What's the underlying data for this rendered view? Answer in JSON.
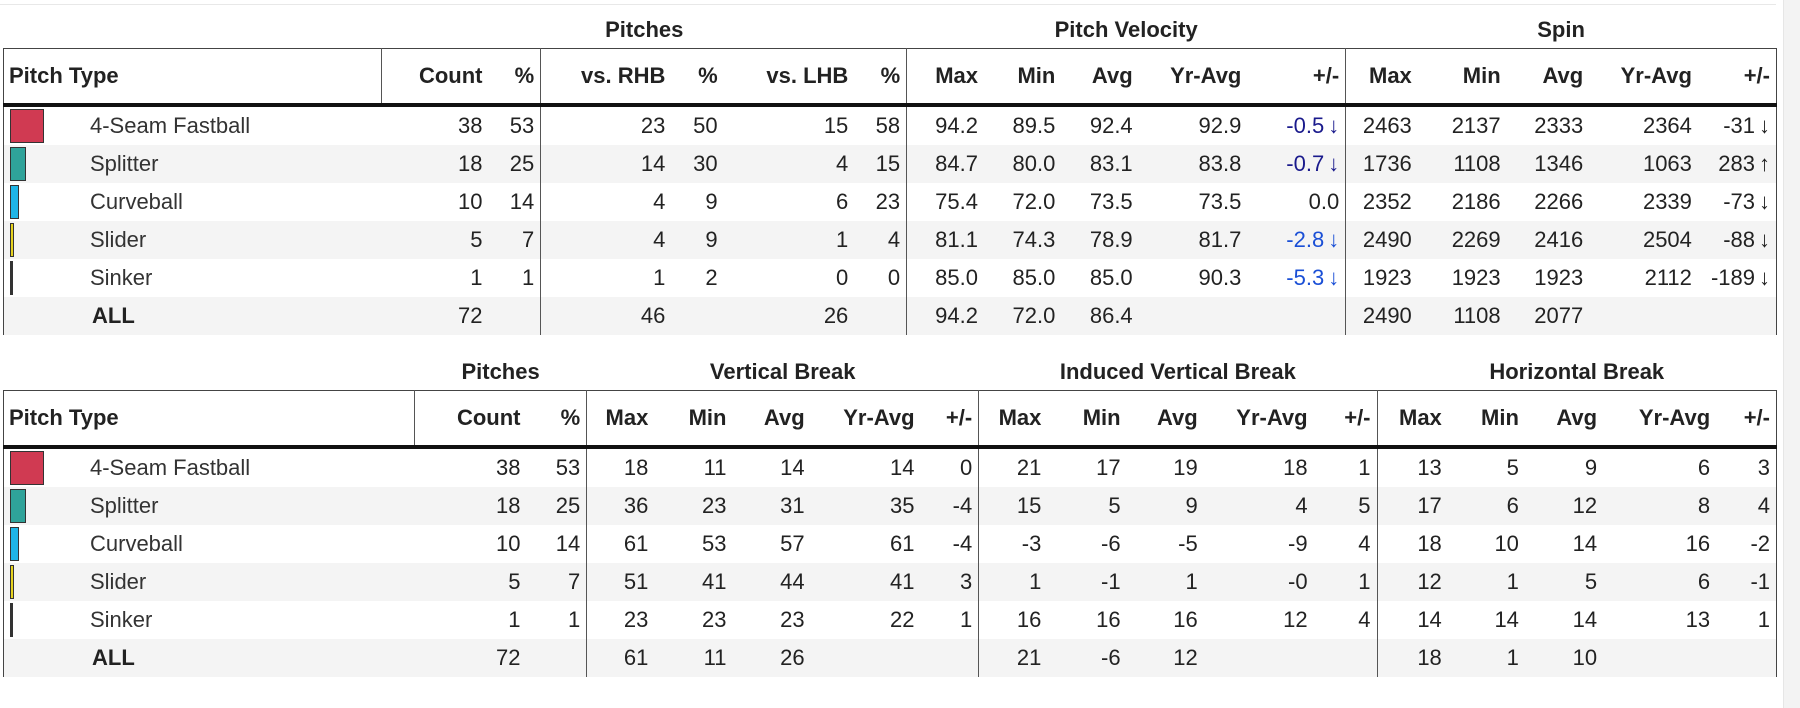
{
  "table1": {
    "group_headers": {
      "pitches": "Pitches",
      "velocity": "Pitch Velocity",
      "spin": "Spin"
    },
    "columns": [
      "Pitch Type",
      "Count",
      "%",
      "vs. RHB",
      "%",
      "vs. LHB",
      "%",
      "Max",
      "Min",
      "Avg",
      "Yr-Avg",
      "+/-",
      "Max",
      "Min",
      "Avg",
      "Yr-Avg",
      "+/-"
    ],
    "rows": [
      {
        "name": "4-Seam Fastball",
        "color": "#d03a52",
        "share": 53,
        "cells": [
          "38",
          "53",
          "23",
          "50",
          "15",
          "58",
          "94.2",
          "89.5",
          "92.4",
          "92.9"
        ],
        "velo_delta": "-0.5",
        "velo_dir": "down",
        "velo_color": "#1a1a8c",
        "spin": [
          "2463",
          "2137",
          "2333",
          "2364"
        ],
        "spin_delta": "-31",
        "spin_dir": "down"
      },
      {
        "name": "Splitter",
        "color": "#2fa39a",
        "share": 25,
        "cells": [
          "18",
          "25",
          "14",
          "30",
          "4",
          "15",
          "84.7",
          "80.0",
          "83.1",
          "83.8"
        ],
        "velo_delta": "-0.7",
        "velo_dir": "down",
        "velo_color": "#1a1a8c",
        "spin": [
          "1736",
          "1108",
          "1346",
          "1063"
        ],
        "spin_delta": "283",
        "spin_dir": "up"
      },
      {
        "name": "Curveball",
        "color": "#1fb5e6",
        "share": 14,
        "cells": [
          "10",
          "14",
          "4",
          "9",
          "6",
          "23",
          "75.4",
          "72.0",
          "73.5",
          "73.5"
        ],
        "velo_delta": "0.0",
        "velo_dir": "",
        "velo_color": "#222222",
        "spin": [
          "2352",
          "2186",
          "2266",
          "2339"
        ],
        "spin_delta": "-73",
        "spin_dir": "down"
      },
      {
        "name": "Slider",
        "color": "#e6d21f",
        "share": 7,
        "cells": [
          "5",
          "7",
          "4",
          "9",
          "1",
          "4",
          "81.1",
          "74.3",
          "78.9",
          "81.7"
        ],
        "velo_delta": "-2.8",
        "velo_dir": "down",
        "velo_color": "#1a4fd6",
        "spin": [
          "2490",
          "2269",
          "2416",
          "2504"
        ],
        "spin_delta": "-88",
        "spin_dir": "down"
      },
      {
        "name": "Sinker",
        "color": "#333333",
        "share": 1,
        "cells": [
          "1",
          "1",
          "1",
          "2",
          "0",
          "0",
          "85.0",
          "85.0",
          "85.0",
          "90.3"
        ],
        "velo_delta": "-5.3",
        "velo_dir": "down",
        "velo_color": "#1a4fd6",
        "spin": [
          "1923",
          "1923",
          "1923",
          "2112"
        ],
        "spin_delta": "-189",
        "spin_dir": "down"
      }
    ],
    "all": {
      "label": "ALL",
      "count": "72",
      "rhb": "46",
      "lhb": "26",
      "vmax": "94.2",
      "vmin": "72.0",
      "vavg": "86.4",
      "smax": "2490",
      "smin": "1108",
      "savg": "2077"
    }
  },
  "table2": {
    "group_headers": {
      "pitches": "Pitches",
      "vbreak": "Vertical Break",
      "ivbreak": "Induced Vertical Break",
      "hbreak": "Horizontal Break"
    },
    "columns": [
      "Pitch Type",
      "Count",
      "%",
      "Max",
      "Min",
      "Avg",
      "Yr-Avg",
      "+/-",
      "Max",
      "Min",
      "Avg",
      "Yr-Avg",
      "+/-",
      "Max",
      "Min",
      "Avg",
      "Yr-Avg",
      "+/-"
    ],
    "rows": [
      {
        "name": "4-Seam Fastball",
        "color": "#d03a52",
        "share": 53,
        "cells": [
          "38",
          "53",
          "18",
          "11",
          "14",
          "14",
          "0",
          "21",
          "17",
          "19",
          "18",
          "1",
          "13",
          "5",
          "9",
          "6",
          "3"
        ]
      },
      {
        "name": "Splitter",
        "color": "#2fa39a",
        "share": 25,
        "cells": [
          "18",
          "25",
          "36",
          "23",
          "31",
          "35",
          "-4",
          "15",
          "5",
          "9",
          "4",
          "5",
          "17",
          "6",
          "12",
          "8",
          "4"
        ]
      },
      {
        "name": "Curveball",
        "color": "#1fb5e6",
        "share": 14,
        "cells": [
          "10",
          "14",
          "61",
          "53",
          "57",
          "61",
          "-4",
          "-3",
          "-6",
          "-5",
          "-9",
          "4",
          "18",
          "10",
          "14",
          "16",
          "-2"
        ]
      },
      {
        "name": "Slider",
        "color": "#e6d21f",
        "share": 7,
        "cells": [
          "5",
          "7",
          "51",
          "41",
          "44",
          "41",
          "3",
          "1",
          "-1",
          "1",
          "-0",
          "1",
          "12",
          "1",
          "5",
          "6",
          "-1"
        ]
      },
      {
        "name": "Sinker",
        "color": "#333333",
        "share": 1,
        "cells": [
          "1",
          "1",
          "23",
          "23",
          "23",
          "22",
          "1",
          "16",
          "16",
          "16",
          "12",
          "4",
          "14",
          "14",
          "14",
          "13",
          "1"
        ]
      }
    ],
    "all": {
      "label": "ALL",
      "cells": [
        "72",
        "",
        "61",
        "11",
        "26",
        "",
        "",
        "21",
        "-6",
        "12",
        "",
        "",
        "18",
        "1",
        "10",
        "",
        ""
      ]
    }
  }
}
